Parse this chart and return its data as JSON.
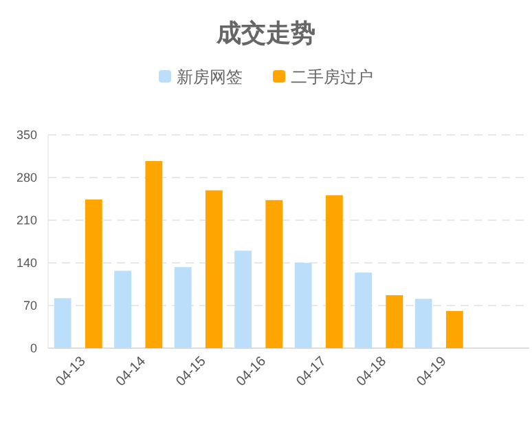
{
  "chart_data": {
    "type": "bar",
    "title": "成交走势",
    "categories": [
      "04-13",
      "04-14",
      "04-15",
      "04-16",
      "04-17",
      "04-18",
      "04-19",
      null
    ],
    "series": [
      {
        "name": "新房网签",
        "color": "#bbdefb",
        "values": [
          82,
          127,
          133,
          160,
          140,
          124,
          81,
          null
        ]
      },
      {
        "name": "二手房过户",
        "color": "#ffa500",
        "values": [
          244,
          307,
          259,
          243,
          251,
          87,
          61,
          null
        ]
      }
    ],
    "ylim": [
      0,
      350
    ],
    "yticks": [
      0,
      70,
      140,
      210,
      280,
      350
    ],
    "grid": "y",
    "legend": "top"
  }
}
